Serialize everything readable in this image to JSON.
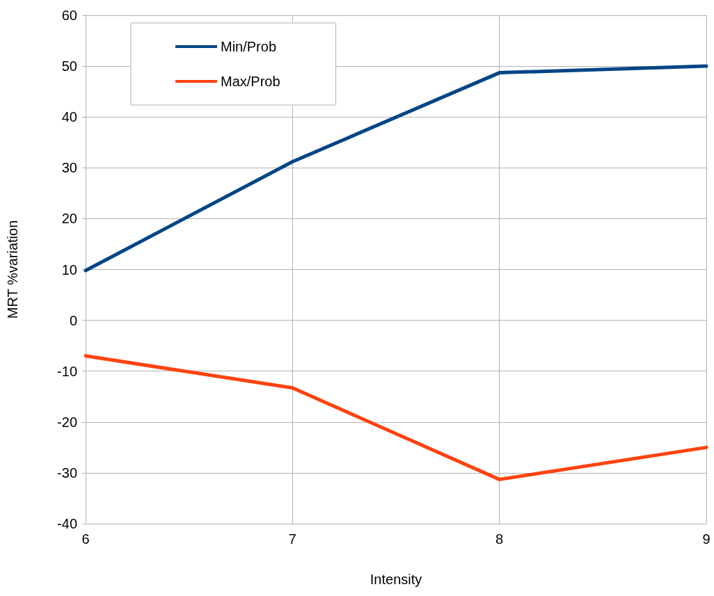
{
  "chart_data": {
    "type": "line",
    "xlabel": "Intensity",
    "ylabel": "MRT %variation",
    "x": [
      6,
      7,
      8,
      9
    ],
    "xlim": [
      6,
      9
    ],
    "xticks": [
      6,
      7,
      8,
      9
    ],
    "ylim": [
      -40,
      60
    ],
    "yticks": [
      -40,
      -30,
      -20,
      -10,
      0,
      10,
      20,
      30,
      40,
      50,
      60
    ],
    "series": [
      {
        "name": "Min/Prob",
        "color": "#004586",
        "values": [
          9.8,
          31.2,
          48.7,
          50
        ]
      },
      {
        "name": "Max/Prob",
        "color": "#ff420e",
        "values": [
          -7,
          -13.3,
          -31.3,
          -25
        ]
      }
    ],
    "grid": true,
    "legend": "top left",
    "marker": "none",
    "line_style": "solid"
  }
}
